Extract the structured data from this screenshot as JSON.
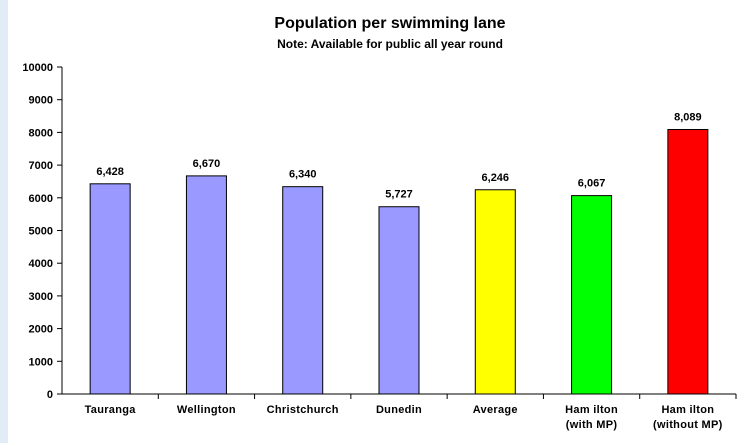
{
  "chart_data": {
    "type": "bar",
    "title": "Population per swimming lane",
    "subtitle": "Note: Available for public all year round",
    "categories": [
      [
        "Tauranga"
      ],
      [
        "Wellington"
      ],
      [
        "Christchurch"
      ],
      [
        "Dunedin"
      ],
      [
        "Average"
      ],
      [
        "Ham ilton",
        "(with MP)"
      ],
      [
        "Ham ilton",
        "(without MP)"
      ]
    ],
    "values": [
      6428,
      6670,
      6340,
      5727,
      6246,
      6067,
      8089
    ],
    "data_labels": [
      "6,428",
      "6,670",
      "6,340",
      "5,727",
      "6,246",
      "6,067",
      "8,089"
    ],
    "colors": [
      "#9999ff",
      "#9999ff",
      "#9999ff",
      "#9999ff",
      "#ffff00",
      "#00ff00",
      "#ff0000"
    ],
    "ylim": [
      0,
      10000
    ],
    "yticks": [
      0,
      1000,
      2000,
      3000,
      4000,
      5000,
      6000,
      7000,
      8000,
      9000,
      10000
    ],
    "xlabel": "",
    "ylabel": "",
    "grid": false,
    "legend": "none"
  }
}
